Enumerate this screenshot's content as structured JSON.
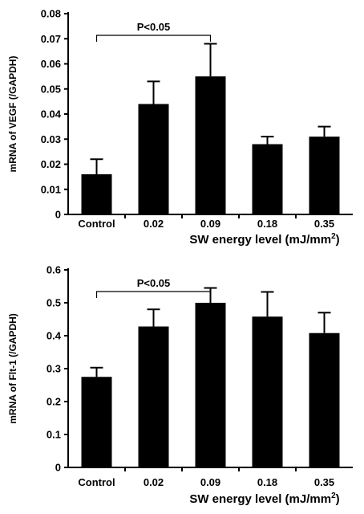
{
  "chart_data": [
    {
      "type": "bar",
      "categories": [
        "Control",
        "0.02",
        "0.09",
        "0.18",
        "0.35"
      ],
      "values": [
        0.016,
        0.044,
        0.055,
        0.028,
        0.031
      ],
      "errors": [
        0.006,
        0.009,
        0.013,
        0.003,
        0.004
      ],
      "ylim": [
        0,
        0.08
      ],
      "yticks": [
        "0",
        "0.01",
        "0.02",
        "0.03",
        "0.04",
        "0.05",
        "0.06",
        "0.07",
        "0.08"
      ],
      "ylabel": "mRNA  of  VEGF  (/GAPDH)",
      "xlabel": {
        "text": "SW  energy  level  (mJ/mm",
        "sup": "2",
        "close": ")"
      },
      "bar_color": "#000000",
      "significance": {
        "label": "P<0.05",
        "from": "Control",
        "to": "0.09"
      }
    },
    {
      "type": "bar",
      "categories": [
        "Control",
        "0.02",
        "0.09",
        "0.18",
        "0.35"
      ],
      "values": [
        0.275,
        0.428,
        0.5,
        0.458,
        0.408
      ],
      "errors": [
        0.028,
        0.052,
        0.045,
        0.075,
        0.062
      ],
      "ylim": [
        0,
        0.6
      ],
      "yticks": [
        "0",
        "0.1",
        "0.2",
        "0.3",
        "0.4",
        "0.5",
        "0.6"
      ],
      "ylabel": "mRNA  of  Flt-1  (/GAPDH)",
      "xlabel": {
        "text": "SW  energy  level  (mJ/mm",
        "sup": "2",
        "close": ")"
      },
      "bar_color": "#000000",
      "significance": {
        "label": "P<0.05",
        "from": "Control",
        "to": "0.09"
      }
    }
  ]
}
